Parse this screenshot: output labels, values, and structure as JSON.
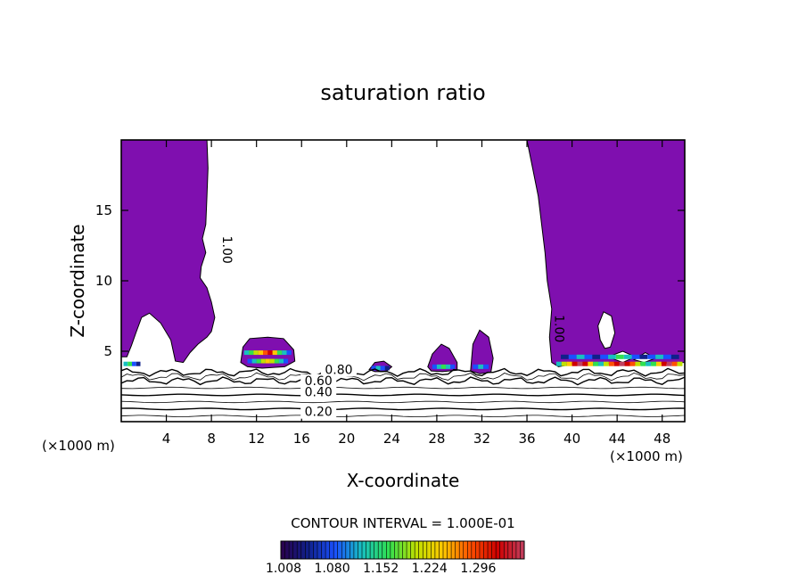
{
  "chart_data": {
    "type": "heatmap",
    "title": "saturation ratio",
    "xlabel": "X-coordinate",
    "ylabel": "Z-coordinate",
    "x_unit_left": "(×1000 m)",
    "x_unit_right": "(×1000 m)",
    "xlim": [
      0,
      50
    ],
    "ylim": [
      0,
      20
    ],
    "x_ticks": [
      4,
      8,
      12,
      16,
      20,
      24,
      28,
      32,
      36,
      40,
      44,
      48
    ],
    "y_ticks": [
      5,
      10,
      15
    ],
    "contour_interval_text": "CONTOUR INTERVAL = 1.000E-01",
    "contour_labels": [
      {
        "text": "1.00",
        "x": 9.0,
        "z": 12.2
      },
      {
        "text": "1.00",
        "x": 38.5,
        "z": 6.6
      },
      {
        "text": "0.80",
        "x": 19.3,
        "z": 3.4
      },
      {
        "text": "0.60",
        "x": 17.5,
        "z": 2.6
      },
      {
        "text": "0.40",
        "x": 17.5,
        "z": 1.8
      },
      {
        "text": "0.20",
        "x": 17.5,
        "z": 0.4
      }
    ],
    "contour_levels_z": [
      0.4,
      0.9,
      1.4,
      1.9,
      2.4,
      2.9,
      3.2,
      3.5
    ],
    "colorbar": {
      "tick_labels": [
        "1.008",
        "1.080",
        "1.152",
        "1.224",
        "1.296"
      ],
      "stops": [
        "#2a004a",
        "#10208a",
        "#1a50ff",
        "#18c0c0",
        "#30e050",
        "#c0e000",
        "#ffc800",
        "#ff5000",
        "#d00000",
        "#c04060"
      ]
    },
    "supersaturated_fill_color": "#7f0faf",
    "regions": [
      {
        "name": "left-upper-plume",
        "x_range": [
          0,
          10
        ],
        "z_range": [
          4,
          20
        ]
      },
      {
        "name": "right-upper-plume",
        "x_range": [
          36,
          50
        ],
        "z_range": [
          4,
          20
        ]
      },
      {
        "name": "cell-12",
        "x_range": [
          10.5,
          15.5
        ],
        "z_range": [
          4,
          6
        ]
      },
      {
        "name": "cell-23",
        "x_range": [
          22,
          24
        ],
        "z_range": [
          3.5,
          4.2
        ]
      },
      {
        "name": "cell-29",
        "x_range": [
          27,
          30
        ],
        "z_range": [
          3.5,
          5.5
        ]
      },
      {
        "name": "cell-32",
        "x_range": [
          31,
          33
        ],
        "z_range": [
          3.5,
          6.5
        ]
      }
    ]
  }
}
